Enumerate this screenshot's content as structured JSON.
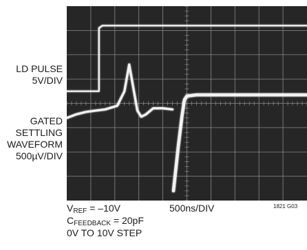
{
  "labels": {
    "trace1_name": "LD PULSE",
    "trace1_scale": "5V/DIV",
    "trace2_line1": "GATED",
    "trace2_line2": "SETTLING",
    "trace2_line3": "WAVEFORM",
    "trace2_scale": "500µV/DIV"
  },
  "notes": {
    "vref_main": "V",
    "vref_sub": "REF",
    "vref_value": " = –10V",
    "timebase": "500ns/DIV",
    "cfb_main": "C",
    "cfb_sub": "FEEDBACK",
    "cfb_value": " = 20pF",
    "step": "0V TO 10V STEP",
    "figure_id": "1821 G03"
  },
  "colors": {
    "screen": "#262626",
    "grid": "#8a8a8a",
    "trace": "#f2f2f2"
  },
  "chart_data": {
    "type": "line",
    "title": "",
    "x_unit": "µs",
    "grid_divisions": {
      "x": 10,
      "y": 8
    },
    "series": [
      {
        "x": [
          -0.5,
          0.17,
          0.17,
          0.24,
          4.5
        ],
        "y": [
          0.5,
          0.5,
          3.1,
          3.2,
          3.2
        ]
      },
      {
        "x": [
          -0.5,
          -0.3,
          -0.1,
          0.1,
          0.3,
          0.55,
          0.7,
          0.8,
          0.88,
          0.97,
          1.05,
          1.15,
          1.3,
          1.5,
          1.7
        ],
        "y": [
          -0.6,
          -0.45,
          -0.35,
          -0.3,
          -0.25,
          -0.1,
          0.5,
          1.6,
          0.7,
          -0.3,
          -0.55,
          -0.45,
          -0.2,
          -0.2,
          -0.25
        ]
      },
      {
        "x": [
          1.72,
          1.82,
          1.9,
          1.95,
          2.0,
          2.2,
          2.6,
          3.0,
          4.5
        ],
        "y": [
          -3.6,
          -1.8,
          -0.5,
          0.15,
          0.3,
          0.35,
          0.35,
          0.35,
          0.35
        ]
      }
    ]
  }
}
